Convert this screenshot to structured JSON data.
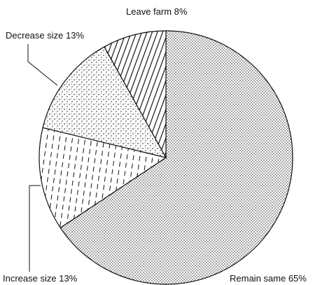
{
  "chart_data": {
    "type": "pie",
    "categories": [
      "Remain same",
      "Increase size",
      "Decrease size",
      "Leave farm"
    ],
    "values": [
      65,
      13,
      13,
      8
    ],
    "value_labels": [
      "65%",
      "13%",
      "13%",
      "8%"
    ],
    "patterns": [
      "fine-dots",
      "dashes",
      "stipple",
      "hatch"
    ]
  }
}
